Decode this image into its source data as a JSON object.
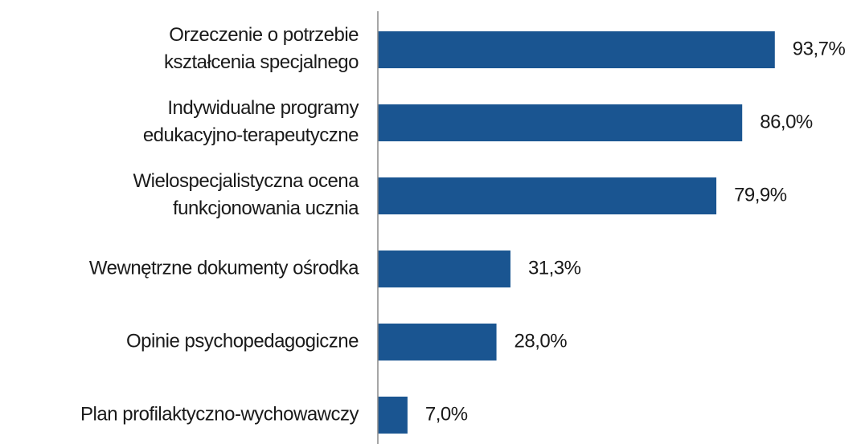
{
  "chart_data": {
    "type": "bar",
    "orientation": "horizontal",
    "categories": [
      "Orzeczenie o potrzebie kształcenia specjalnego",
      "Indywidualne programy edukacyjno-terapeutyczne",
      "Wielospecjalistyczna ocena funkcjonowania ucznia",
      "Wewnętrzne dokumenty ośrodka",
      "Opinie psychopedagogiczne",
      "Plan profilaktyczno-wychowawczy"
    ],
    "values": [
      93.7,
      86.0,
      79.9,
      31.3,
      28.0,
      7.0
    ],
    "value_labels": [
      "93,7%",
      "86,0%",
      "79,9%",
      "31,3%",
      "28,0%",
      "7,0%"
    ],
    "color": "#1a5591",
    "xlim": [
      0,
      100
    ]
  }
}
